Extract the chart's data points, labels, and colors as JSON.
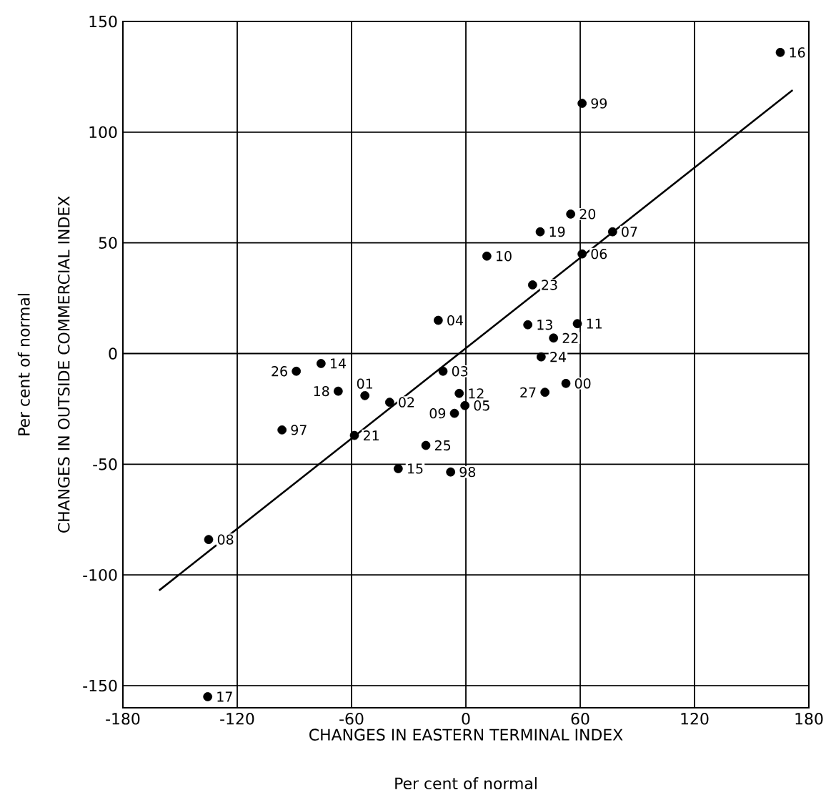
{
  "chart_data": {
    "type": "scatter",
    "xlabel": "CHANGES IN EASTERN TERMINAL INDEX",
    "ylabel": "CHANGES IN OUTSIDE COMMERCIAL INDEX",
    "xlim": [
      -180,
      180
    ],
    "ylim": [
      -160,
      150
    ],
    "xticks": [
      -180,
      -120,
      -60,
      0,
      60,
      120,
      180
    ],
    "yticks": [
      -150,
      -100,
      -50,
      0,
      50,
      100,
      150
    ],
    "grid": true,
    "marker": "circle",
    "series": [
      {
        "color": "#000000",
        "x": [
          165,
          61,
          55,
          39,
          77,
          61,
          11,
          35,
          -14.5,
          32.5,
          58.5,
          46,
          39.5,
          52.5,
          41.5,
          -89,
          -76,
          -67,
          -53,
          -40,
          -12,
          -3.5,
          -0.5,
          -6,
          -96.5,
          -58.5,
          -21,
          -35.5,
          -8,
          -135,
          -135.5
        ],
        "values": [
          136,
          113,
          63,
          55,
          55,
          45,
          44,
          31,
          15,
          13,
          13.5,
          7,
          -1.5,
          -13.5,
          -17.5,
          -8,
          -4.5,
          -17,
          -19,
          -22,
          -8,
          -18,
          -23.5,
          -27,
          -34.5,
          -37,
          -41.5,
          -52,
          -53.5,
          -84,
          -155
        ]
      },
      {
        "type": "line",
        "color": "#000000",
        "marker": "none",
        "x": [
          -161,
          171.5
        ],
        "values": [
          -107,
          119
        ]
      }
    ],
    "annotations": [
      "Per cent of normal",
      "Per cent of normal",
      {
        "text": "16",
        "x": 165,
        "y": 136
      },
      {
        "text": "99",
        "x": 61,
        "y": 113
      },
      {
        "text": "20",
        "x": 55,
        "y": 63
      },
      {
        "text": "19",
        "x": 39,
        "y": 55
      },
      {
        "text": "07",
        "x": 77,
        "y": 55
      },
      {
        "text": "06",
        "x": 61,
        "y": 45
      },
      {
        "text": "10",
        "x": 11,
        "y": 44
      },
      {
        "text": "23",
        "x": 35,
        "y": 31
      },
      {
        "text": "04",
        "x": -14.5,
        "y": 15
      },
      {
        "text": "13",
        "x": 32.5,
        "y": 13
      },
      {
        "text": "11",
        "x": 58.5,
        "y": 13.5
      },
      {
        "text": "22",
        "x": 46,
        "y": 7
      },
      {
        "text": "24",
        "x": 39.5,
        "y": -1.5
      },
      {
        "text": "00",
        "x": 52.5,
        "y": -13.5
      },
      {
        "text": "27",
        "x": 41.5,
        "y": -17.5
      },
      {
        "text": "26",
        "x": -89,
        "y": -8
      },
      {
        "text": "14",
        "x": -76,
        "y": -4.5
      },
      {
        "text": "18",
        "x": -67,
        "y": -17
      },
      {
        "text": "01",
        "x": -53,
        "y": -19
      },
      {
        "text": "02",
        "x": -40,
        "y": -22
      },
      {
        "text": "03",
        "x": -12,
        "y": -8
      },
      {
        "text": "12",
        "x": -3.5,
        "y": -18
      },
      {
        "text": "05",
        "x": -0.5,
        "y": -23.5
      },
      {
        "text": "09",
        "x": -6,
        "y": -27
      },
      {
        "text": "97",
        "x": -96.5,
        "y": -34.5
      },
      {
        "text": "21",
        "x": -58.5,
        "y": -37
      },
      {
        "text": "25",
        "x": -21,
        "y": -41.5
      },
      {
        "text": "15",
        "x": -35.5,
        "y": -52
      },
      {
        "text": "98",
        "x": -8,
        "y": -53.5
      },
      {
        "text": "08",
        "x": -135,
        "y": -84
      },
      {
        "text": "17",
        "x": -135.5,
        "y": -155
      }
    ]
  }
}
